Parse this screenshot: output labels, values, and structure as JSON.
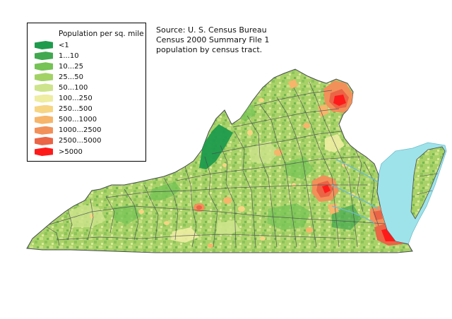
{
  "legend": {
    "title": "Population per sq. mile",
    "items": [
      {
        "label": "<1",
        "color": "#1e9b4d"
      },
      {
        "label": "1...10",
        "color": "#41a84f"
      },
      {
        "label": "10...25",
        "color": "#74c354"
      },
      {
        "label": "25...50",
        "color": "#a2d266"
      },
      {
        "label": "50...100",
        "color": "#cde48c"
      },
      {
        "label": "100...250",
        "color": "#eeeda2"
      },
      {
        "label": "250...500",
        "color": "#f6d584"
      },
      {
        "label": "500...1000",
        "color": "#f6b56a"
      },
      {
        "label": "1000...2500",
        "color": "#f2905a"
      },
      {
        "label": "2500...5000",
        "color": "#ea6446"
      },
      {
        "label": ">5000",
        "color": "#ff1a1a"
      }
    ]
  },
  "source": {
    "line1": "Source: U. S. Census Bureau",
    "line2": "Census 2000 Summary File 1",
    "line3": "population by census tract."
  },
  "colors": {
    "water": "#9fe3ea",
    "boundary": "#4a4a55",
    "base": "#a8d268"
  }
}
